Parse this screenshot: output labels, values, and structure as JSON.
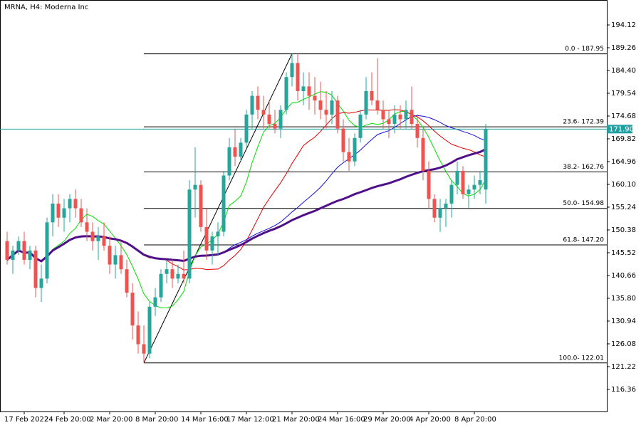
{
  "chart_data": {
    "type": "candlestick",
    "title": "MRNA, H4:  Moderna Inc",
    "open": [
      148,
      144,
      146,
      148,
      144,
      146,
      138,
      140,
      152,
      156,
      153,
      155,
      157,
      155,
      152,
      150,
      148,
      149,
      147,
      143,
      145,
      142,
      137,
      130,
      126,
      124,
      134,
      136,
      141,
      142,
      140,
      141,
      140,
      159,
      160,
      151,
      146,
      149,
      150,
      162,
      168,
      166,
      169,
      175,
      179,
      176,
      175,
      173,
      172,
      176,
      183,
      186,
      180,
      181,
      179,
      178,
      176,
      175,
      178,
      172,
      167,
      165,
      170,
      175,
      180,
      178,
      176,
      174,
      173,
      175,
      174,
      176,
      173,
      170,
      163,
      157,
      153,
      155,
      156,
      160,
      163,
      158,
      159,
      160,
      159
    ],
    "high": [
      150,
      147,
      149,
      150,
      147,
      147,
      143,
      153,
      158,
      158,
      157,
      158,
      159,
      157,
      155,
      152,
      151,
      152,
      149,
      147,
      148,
      144,
      139,
      133,
      130,
      135,
      138,
      142,
      144,
      144,
      143,
      146,
      161,
      168,
      161,
      155,
      150,
      152,
      163,
      170,
      172,
      170,
      176,
      180,
      181,
      179,
      178,
      176,
      177,
      184,
      187.95,
      188,
      184,
      184,
      183,
      182,
      180,
      180,
      179,
      174,
      170,
      171,
      176,
      183,
      184,
      187,
      178,
      176,
      177,
      177,
      178,
      181,
      175,
      172,
      165,
      158,
      157,
      157,
      161,
      165,
      164,
      160,
      162,
      163,
      173
    ],
    "low": [
      143,
      141,
      145,
      143,
      142,
      136,
      135,
      139,
      149,
      151,
      150,
      152,
      153,
      151,
      148,
      146,
      144,
      146,
      141,
      140,
      141,
      136,
      127,
      124,
      122.01,
      123,
      132,
      135,
      139,
      138,
      139,
      139,
      139,
      153,
      150,
      144,
      143,
      145,
      149,
      161,
      164,
      165,
      168,
      172,
      174,
      172,
      172,
      171,
      170,
      175,
      181,
      178,
      177,
      176,
      175,
      174,
      172,
      173,
      171,
      165,
      163,
      164,
      169,
      174,
      177,
      175,
      172,
      170,
      171,
      172,
      172,
      172,
      168,
      161,
      155,
      152,
      150,
      151,
      153,
      158,
      157,
      155,
      157,
      158,
      156
    ],
    "close": [
      144,
      146,
      148,
      144,
      146,
      138,
      140,
      152,
      156,
      153,
      155,
      157,
      155,
      152,
      150,
      148,
      149,
      147,
      143,
      145,
      142,
      137,
      130,
      126,
      124,
      134,
      136,
      141,
      142,
      140,
      141,
      140,
      159,
      160,
      151,
      146,
      149,
      150,
      162,
      168,
      166,
      169,
      175,
      179,
      176,
      175,
      173,
      172,
      176,
      183,
      186,
      180,
      181,
      179,
      178,
      176,
      175,
      178,
      172,
      167,
      165,
      170,
      175,
      180,
      178,
      176,
      174,
      173,
      175,
      174,
      176,
      173,
      170,
      163,
      157,
      153,
      155,
      156,
      160,
      163,
      158,
      159,
      160,
      161,
      171.9
    ],
    "bull_color": "#26a69a",
    "bear_color": "#ef5350",
    "ylim": [
      111.65,
      199.44
    ],
    "yticks": [
      194.12,
      189.26,
      {
        "value": 184.4,
        "label": "184.40"
      },
      179.54,
      174.68,
      169.82,
      164.96,
      {
        "value": 160.1,
        "label": "160.10"
      },
      155.24,
      150.38,
      145.52,
      140.66,
      {
        "value": 135.8,
        "label": "135.80"
      },
      130.94,
      126.08,
      121.22,
      116.36
    ],
    "xticks": [
      {
        "value": 3,
        "label": "17 Feb 2022"
      },
      {
        "value": 10,
        "label": "24 Feb 20:00"
      },
      {
        "value": 18,
        "label": "2 Mar 20:00"
      },
      {
        "value": 26,
        "label": "8 Mar 20:00"
      },
      {
        "value": 34,
        "label": "14 Mar 16:00"
      },
      {
        "value": 42,
        "label": "17 Mar 12:00"
      },
      {
        "value": 50,
        "label": "21 Mar 20:00"
      },
      {
        "value": 58,
        "label": "24 Mar 16:00"
      },
      {
        "value": 66,
        "label": "29 Mar 20:00"
      },
      {
        "value": 74,
        "label": "4 Apr 20:00"
      },
      {
        "value": 82,
        "label": "8 Apr 20:00"
      }
    ],
    "current_price": {
      "value": 171.9,
      "label": "171.90"
    },
    "current_color": "#20a0a0",
    "fib_start": 24,
    "fib_levels": [
      {
        "value": 187.95,
        "label": "0.0 - 187.95"
      },
      {
        "value": 172.39,
        "label": "23.6- 172.39"
      },
      {
        "value": 162.76,
        "label": "38.2- 162.76"
      },
      {
        "value": 154.98,
        "label": "50.0- 154.98"
      },
      {
        "value": 147.2,
        "label": "61.8- 147.20"
      },
      {
        "value": 122.01,
        "label": "100.0- 122.01"
      }
    ],
    "indicators": [
      {
        "period": 8,
        "color": "#00e000",
        "width": 1
      },
      {
        "period": 21,
        "color": "#e00000",
        "width": 1
      },
      {
        "period": 34,
        "color": "#1010e0",
        "width": 1
      },
      {
        "period": 55,
        "color": "#50108a",
        "width": 3
      }
    ]
  }
}
